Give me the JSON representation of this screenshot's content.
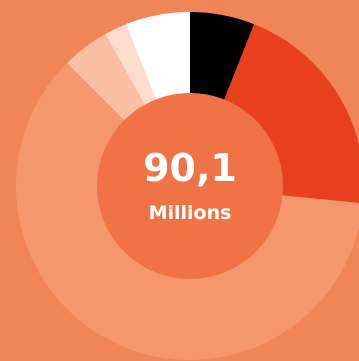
{
  "chart_data": {
    "type": "donut",
    "categories": [
      null,
      null,
      null,
      null,
      null,
      null
    ],
    "values": [
      6,
      20.6,
      60.9,
      4.4,
      2.1,
      6
    ],
    "colors": [
      "#000000",
      "#e8401c",
      "#f5976c",
      "#f9bfa3",
      "#fcdccd",
      "#ffffff"
    ],
    "center_value": "90,1",
    "center_unit": "Millions"
  }
}
